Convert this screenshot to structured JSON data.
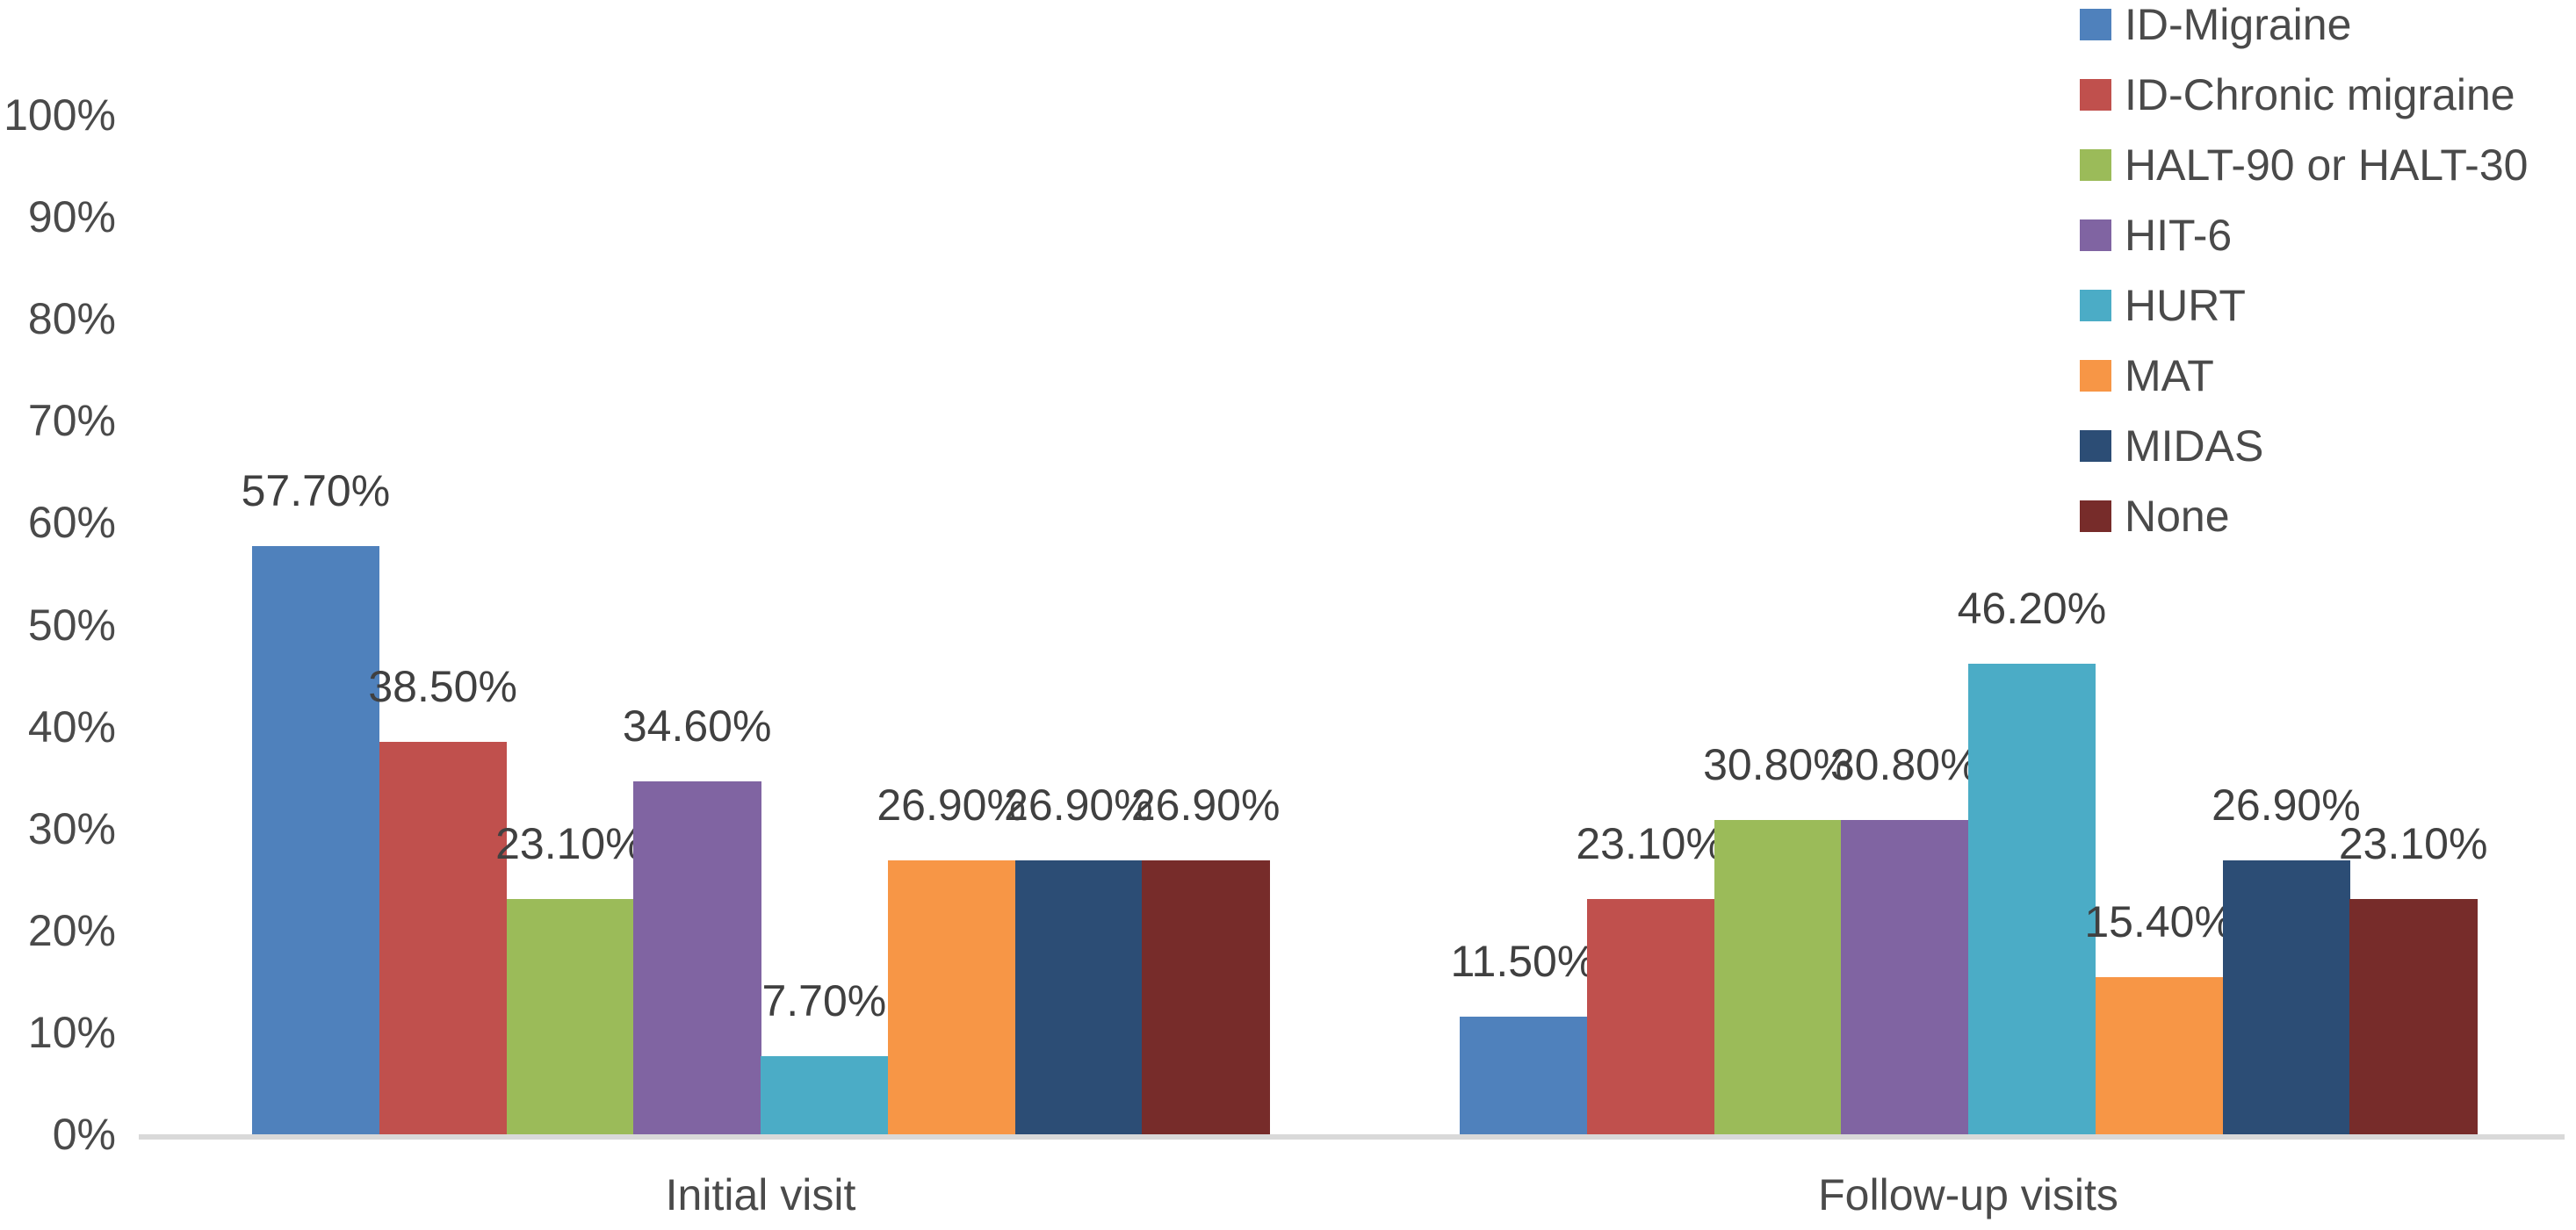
{
  "chart_data": {
    "type": "bar",
    "title": "",
    "xlabel": "",
    "ylabel": "",
    "categories": [
      "Initial visit",
      "Follow-up visits"
    ],
    "series": [
      {
        "name": "ID-Migraine",
        "color": "#4F81BC",
        "values": [
          57.7,
          11.5
        ],
        "labels": [
          "57.70%",
          "11.50%"
        ]
      },
      {
        "name": "ID-Chronic migraine",
        "color": "#C0504D",
        "values": [
          38.5,
          23.1
        ],
        "labels": [
          "38.50%",
          "23.10%"
        ]
      },
      {
        "name": "HALT-90 or HALT-30",
        "color": "#9BBB59",
        "values": [
          23.1,
          30.8
        ],
        "labels": [
          "23.10%",
          "30.80%"
        ]
      },
      {
        "name": "HIT-6",
        "color": "#8064A2",
        "values": [
          34.6,
          30.8
        ],
        "labels": [
          "34.60%",
          "30.80%"
        ]
      },
      {
        "name": "HURT",
        "color": "#4BACC6",
        "values": [
          7.7,
          46.2
        ],
        "labels": [
          "7.70%",
          "46.20%"
        ]
      },
      {
        "name": "MAT",
        "color": "#F79646",
        "values": [
          26.9,
          15.4
        ],
        "labels": [
          "26.90%",
          "15.40%"
        ]
      },
      {
        "name": "MIDAS",
        "color": "#2C4D75",
        "values": [
          26.9,
          26.9
        ],
        "labels": [
          "26.90%",
          "26.90%"
        ]
      },
      {
        "name": "None",
        "color": "#772C2A",
        "values": [
          26.9,
          23.1
        ],
        "labels": [
          "26.90%",
          "23.10%"
        ]
      }
    ],
    "y_axis": {
      "min": 0,
      "max": 100,
      "ticks": [
        "0%",
        "10%",
        "20%",
        "30%",
        "40%",
        "50%",
        "60%",
        "70%",
        "80%",
        "90%",
        "100%"
      ]
    },
    "legend_position": "top-right",
    "grid": false,
    "data_labels_visible": true,
    "colors": {
      "axis_line": "#D9D9D9",
      "tick_text": "#4A4A4A",
      "category_text": "#4A4A4A",
      "data_label_text": "#404040",
      "legend_text": "#4A4A4A",
      "background": "#FFFFFF"
    }
  }
}
